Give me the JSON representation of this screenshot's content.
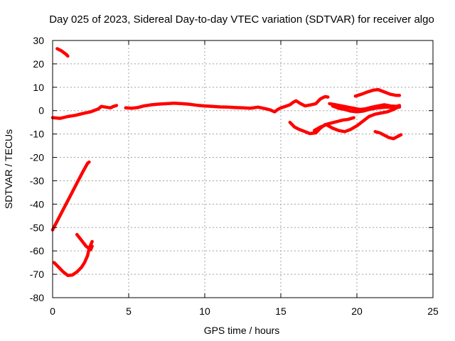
{
  "chart_data": {
    "type": "line",
    "title": "Day 025 of 2023, Sidereal Day-to-day VTEC variation (SDTVAR) for receiver algo",
    "xlabel": "GPS time / hours",
    "ylabel": "SDTVAR / TECUs",
    "xlim": [
      0,
      25
    ],
    "ylim": [
      -80,
      30
    ],
    "xticks": [
      0,
      5,
      10,
      15,
      20,
      25
    ],
    "yticks": [
      30,
      20,
      10,
      0,
      -10,
      -20,
      -30,
      -40,
      -50,
      -60,
      -70,
      -80
    ],
    "grid": true,
    "color": "#ff0000",
    "series": [
      {
        "name": "seg-high-start",
        "points": [
          [
            0.3,
            26.5
          ],
          [
            0.6,
            25.5
          ],
          [
            0.9,
            24
          ],
          [
            1.0,
            23.3
          ]
        ]
      },
      {
        "name": "seg-main-early",
        "points": [
          [
            0.0,
            -3
          ],
          [
            0.5,
            -3.3
          ],
          [
            1.0,
            -2.5
          ],
          [
            1.5,
            -2
          ],
          [
            2.0,
            -1.2
          ],
          [
            2.5,
            -0.5
          ],
          [
            3.0,
            0.7
          ],
          [
            3.2,
            1.8
          ],
          [
            3.5,
            1.5
          ],
          [
            3.8,
            1.2
          ],
          [
            4.0,
            1.8
          ],
          [
            4.2,
            2.2
          ]
        ]
      },
      {
        "name": "seg-main-mid",
        "points": [
          [
            4.8,
            1.2
          ],
          [
            5.2,
            1.0
          ],
          [
            5.6,
            1.3
          ],
          [
            6.0,
            2.0
          ],
          [
            6.5,
            2.5
          ],
          [
            7.0,
            2.8
          ],
          [
            7.5,
            3.0
          ],
          [
            8.0,
            3.2
          ],
          [
            8.5,
            3.0
          ],
          [
            9.0,
            2.7
          ],
          [
            9.5,
            2.3
          ],
          [
            10.0,
            2.0
          ],
          [
            10.5,
            1.8
          ],
          [
            11.0,
            1.6
          ],
          [
            11.5,
            1.5
          ],
          [
            12.0,
            1.3
          ],
          [
            12.5,
            1.2
          ],
          [
            13.0,
            1.0
          ],
          [
            13.5,
            1.5
          ],
          [
            14.0,
            0.8
          ],
          [
            14.3,
            0.3
          ],
          [
            14.6,
            -0.5
          ],
          [
            14.8,
            0.5
          ],
          [
            15.0,
            1.2
          ],
          [
            15.3,
            1.8
          ],
          [
            15.6,
            2.5
          ],
          [
            15.8,
            3.5
          ],
          [
            16.0,
            4.2
          ],
          [
            16.3,
            3.0
          ],
          [
            16.6,
            2.0
          ],
          [
            17.0,
            2.5
          ],
          [
            17.3,
            3.0
          ],
          [
            17.6,
            5.0
          ],
          [
            17.9,
            6.0
          ],
          [
            18.1,
            5.8
          ]
        ]
      },
      {
        "name": "seg-upper-right",
        "points": [
          [
            18.2,
            3.0
          ],
          [
            18.6,
            2.5
          ],
          [
            19.0,
            2.0
          ],
          [
            19.4,
            1.5
          ],
          [
            19.8,
            1.0
          ],
          [
            20.2,
            0.5
          ],
          [
            20.6,
            0.8
          ],
          [
            21.0,
            1.5
          ],
          [
            21.4,
            2.0
          ],
          [
            21.8,
            2.5
          ],
          [
            22.2,
            2.0
          ],
          [
            22.6,
            1.8
          ],
          [
            22.8,
            2.2
          ]
        ]
      },
      {
        "name": "seg-top-right",
        "points": [
          [
            19.9,
            6.2
          ],
          [
            20.3,
            7.0
          ],
          [
            20.7,
            8.0
          ],
          [
            21.1,
            8.8
          ],
          [
            21.4,
            9.0
          ],
          [
            21.8,
            8.0
          ],
          [
            22.2,
            7.0
          ],
          [
            22.6,
            6.5
          ],
          [
            22.8,
            6.5
          ]
        ]
      },
      {
        "name": "seg-mid-right",
        "points": [
          [
            18.4,
            2.0
          ],
          [
            18.8,
            1.0
          ],
          [
            19.2,
            0.5
          ],
          [
            19.6,
            -0.2
          ],
          [
            20.0,
            -0.5
          ],
          [
            20.4,
            -0.2
          ],
          [
            20.8,
            0.5
          ],
          [
            21.2,
            1.0
          ],
          [
            21.6,
            1.3
          ],
          [
            22.0,
            1.5
          ],
          [
            22.4,
            1.3
          ],
          [
            22.8,
            1.5
          ]
        ]
      },
      {
        "name": "seg-dip-right",
        "points": [
          [
            15.6,
            -5.0
          ],
          [
            15.9,
            -7.0
          ],
          [
            16.2,
            -8.0
          ],
          [
            16.6,
            -9.0
          ],
          [
            16.9,
            -9.8
          ],
          [
            17.3,
            -9.5
          ],
          [
            17.6,
            -7.5
          ],
          [
            17.9,
            -6.0
          ],
          [
            18.2,
            -5.5
          ],
          [
            18.5,
            -5.0
          ],
          [
            18.8,
            -4.5
          ],
          [
            19.1,
            -4.0
          ],
          [
            19.4,
            -3.8
          ],
          [
            19.8,
            -3.0
          ]
        ]
      },
      {
        "name": "seg-lower-right",
        "points": [
          [
            17.2,
            -8.5
          ],
          [
            17.6,
            -7.0
          ],
          [
            18.0,
            -6.0
          ],
          [
            18.4,
            -7.5
          ],
          [
            18.8,
            -8.5
          ],
          [
            19.2,
            -9.0
          ],
          [
            19.6,
            -8.0
          ],
          [
            20.0,
            -6.5
          ],
          [
            20.4,
            -4.5
          ],
          [
            20.8,
            -2.5
          ],
          [
            21.2,
            -1.5
          ],
          [
            21.6,
            -1.0
          ],
          [
            22.0,
            -0.5
          ],
          [
            22.4,
            0.5
          ],
          [
            22.8,
            1.8
          ]
        ]
      },
      {
        "name": "seg-bottom-right",
        "points": [
          [
            21.2,
            -9.0
          ],
          [
            21.5,
            -9.5
          ],
          [
            21.8,
            -10.5
          ],
          [
            22.1,
            -11.5
          ],
          [
            22.4,
            -12.0
          ],
          [
            22.7,
            -11.0
          ],
          [
            22.9,
            -10.3
          ]
        ]
      },
      {
        "name": "seg-steep-rise",
        "points": [
          [
            0.0,
            -51
          ],
          [
            0.4,
            -46
          ],
          [
            0.8,
            -41
          ],
          [
            1.2,
            -36
          ],
          [
            1.6,
            -31
          ],
          [
            2.0,
            -26
          ],
          [
            2.3,
            -22.5
          ],
          [
            2.4,
            -22
          ]
        ]
      },
      {
        "name": "seg-low-curve",
        "points": [
          [
            0.1,
            -65
          ],
          [
            0.4,
            -67
          ],
          [
            0.7,
            -69
          ],
          [
            1.0,
            -70.5
          ],
          [
            1.3,
            -70.3
          ],
          [
            1.6,
            -69
          ],
          [
            1.9,
            -67
          ],
          [
            2.1,
            -65
          ],
          [
            2.3,
            -62
          ],
          [
            2.4,
            -59
          ],
          [
            2.6,
            -56
          ]
        ]
      },
      {
        "name": "seg-low-hook",
        "points": [
          [
            1.6,
            -53
          ],
          [
            1.9,
            -55.5
          ],
          [
            2.2,
            -58
          ],
          [
            2.5,
            -59.5
          ],
          [
            2.6,
            -58
          ]
        ]
      }
    ]
  }
}
